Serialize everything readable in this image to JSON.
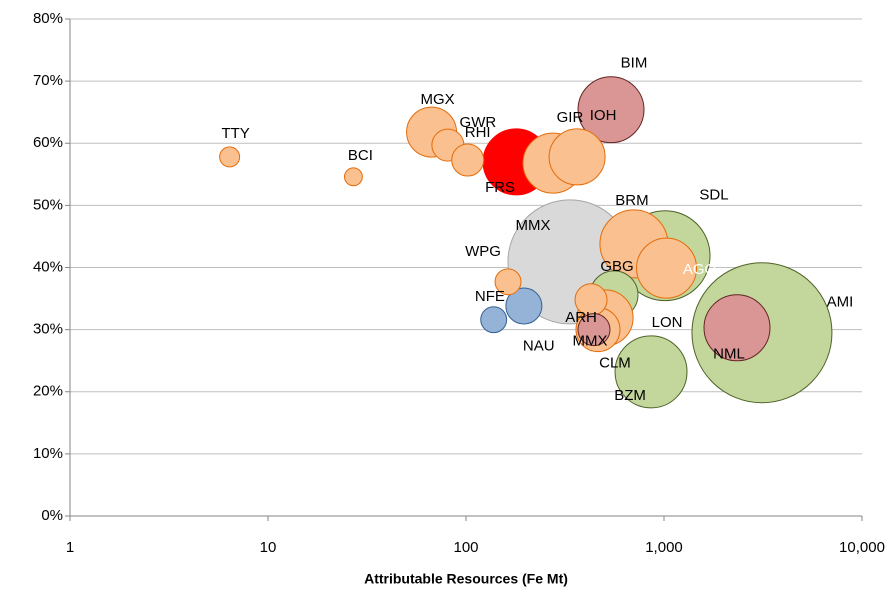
{
  "chart_data": {
    "type": "bubble",
    "x_label": "Attributable Resources (Fe Mt)",
    "log_x": true,
    "grid": true,
    "xlim": [
      1,
      10000
    ],
    "xticks": [
      1,
      10,
      100,
      {
        "value": 1000,
        "label": "1,000"
      },
      {
        "value": 10000,
        "label": "10,000"
      }
    ],
    "ylim": [
      0,
      80
    ],
    "yticks": [
      {
        "value": 0,
        "label": "0%"
      },
      {
        "value": 10,
        "label": "10%"
      },
      {
        "value": 20,
        "label": "20%"
      },
      {
        "value": 30,
        "label": "30%"
      },
      {
        "value": 40,
        "label": "40%"
      },
      {
        "value": 50,
        "label": "50%"
      },
      {
        "value": 60,
        "label": "60%"
      },
      {
        "value": 70,
        "label": "70%"
      },
      {
        "value": 80,
        "label": "80%"
      }
    ],
    "names": [
      "AMI",
      "MMX",
      "SDL",
      "BZM",
      "BRM",
      "AGO",
      "BIM",
      "FRS",
      "GIR",
      "IOH",
      "MGX",
      "NML",
      "GBG",
      "LON",
      "CLM",
      "GWR",
      "RHI",
      "ARH",
      "MMX",
      "NFE",
      "WPG",
      "NAU",
      "TTY",
      "BCI"
    ],
    "x": [
      3124,
      335,
      1012,
      860,
      705,
      1030,
      540,
      179,
      275,
      364,
      67,
      2337,
      559,
      504,
      464,
      81,
      102,
      428,
      443,
      196,
      163,
      138,
      6.4,
      27
    ],
    "values": [
      29.5,
      40.9,
      41.9,
      23.2,
      43.8,
      39.9,
      65.4,
      57.0,
      56.8,
      57.8,
      61.8,
      30.3,
      35.6,
      31.9,
      30.0,
      59.7,
      57.3,
      34.8,
      30.0,
      33.8,
      37.7,
      31.6,
      57.8,
      54.6
    ],
    "sizes": [
      1225,
      961,
      506,
      324,
      289,
      225,
      272,
      272,
      225,
      196,
      156,
      272,
      144,
      196,
      121,
      64,
      64,
      64,
      64,
      81,
      42,
      42,
      25,
      20
    ],
    "colors": [
      "#c3d69b",
      "#d9d9d9",
      "#c3d69b",
      "#c3d69b",
      "#fac090",
      "#fac090",
      "#d99694",
      "#ff0000",
      "#fac090",
      "#fac090",
      "#fac090",
      "#d99694",
      "#c3d69b",
      "#fac090",
      "#fac090",
      "#fac090",
      "#fac090",
      "#fac090",
      "#d99694",
      "#95b3d7",
      "#fac090",
      "#95b3d7",
      "#fac090",
      "#fac090"
    ]
  }
}
